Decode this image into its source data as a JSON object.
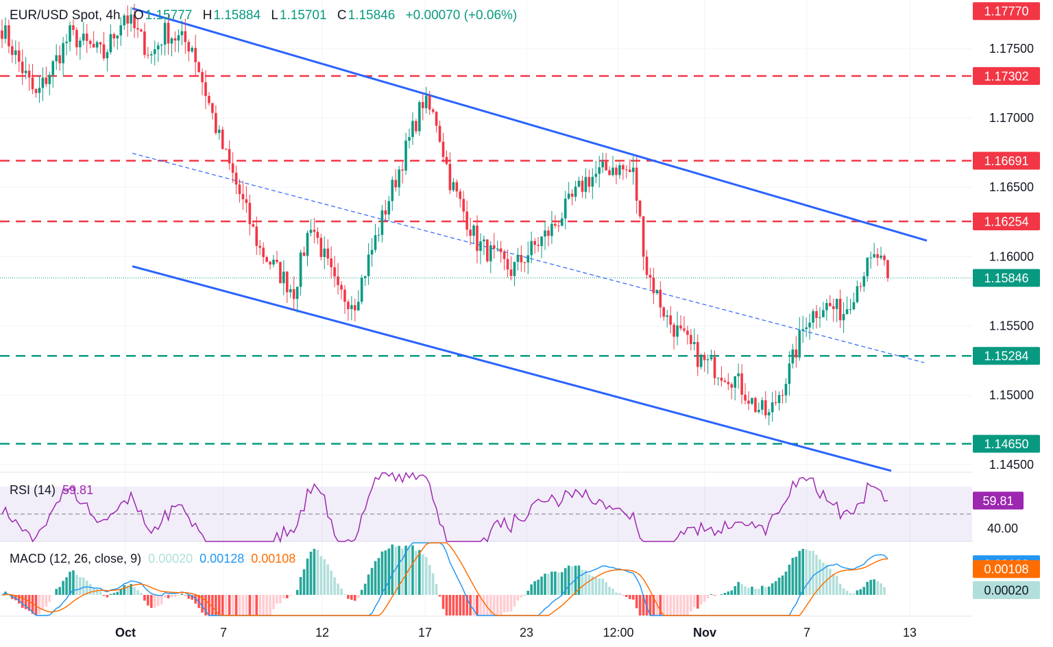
{
  "header": {
    "symbol": "EUR/USD Spot, 4h",
    "open_label": "O",
    "open": "1.15777",
    "high_label": "H",
    "high": "1.15884",
    "low_label": "L",
    "low": "1.15701",
    "close_label": "C",
    "close": "1.15846",
    "change": "+0.00070 (+0.06%)"
  },
  "rsi_legend": {
    "name": "RSI (14)",
    "value": "59.81"
  },
  "macd_legend": {
    "name": "MACD (12, 26, close, 9)",
    "hist": "0.00020",
    "macd": "0.00128",
    "signal": "0.00108"
  },
  "colors": {
    "up": "#089981",
    "down": "#f23645",
    "channel": "#2962ff",
    "rsi": "#9c27b0",
    "macd": "#2196f3",
    "signal": "#ff6d00",
    "hist_up_strong": "#26a69a",
    "hist_up_weak": "#b2dfdb",
    "hist_down_strong": "#ff5252",
    "hist_down_weak": "#ffcdd2"
  },
  "chart_data": {
    "type": "candlestick",
    "timeframe": "4h",
    "x_tick_labels": [
      "Oct",
      "7",
      "12",
      "17",
      "23",
      "12:00",
      "Nov",
      "7",
      "13"
    ],
    "y_ticks": [
      "1.17500",
      "1.17000",
      "1.16500",
      "1.16000",
      "1.15500",
      "1.15000",
      "1.14500"
    ],
    "ylim": [
      1.1445,
      1.1785
    ],
    "price_labels": [
      {
        "value": "1.17770",
        "kind": "resistance"
      },
      {
        "value": "1.17302",
        "kind": "resistance"
      },
      {
        "value": "1.16691",
        "kind": "resistance"
      },
      {
        "value": "1.16254",
        "kind": "resistance"
      },
      {
        "value": "1.15846",
        "kind": "last"
      },
      {
        "value": "1.15284",
        "kind": "support"
      },
      {
        "value": "1.14650",
        "kind": "support"
      }
    ],
    "channel": {
      "upper": [
        [
          "Oct 1",
          1.1785
        ],
        [
          "Nov 12",
          1.1613
        ]
      ],
      "lower": [
        [
          "Oct 1",
          1.159
        ],
        [
          "Nov 12",
          1.1446
        ]
      ],
      "mid_dashed": [
        [
          "Oct 1",
          1.1675
        ],
        [
          "Nov 13",
          1.1524
        ]
      ]
    },
    "waypoints": [
      [
        0,
        1.1765
      ],
      [
        10,
        1.1715
      ],
      [
        20,
        1.176
      ],
      [
        30,
        1.1745
      ],
      [
        36,
        1.1775
      ],
      [
        44,
        1.1745
      ],
      [
        48,
        1.1762
      ],
      [
        56,
        1.1752
      ],
      [
        64,
        1.1685
      ],
      [
        76,
        1.1605
      ],
      [
        86,
        1.1575
      ],
      [
        91,
        1.1625
      ],
      [
        99,
        1.1573
      ],
      [
        104,
        1.1568
      ],
      [
        114,
        1.1642
      ],
      [
        124,
        1.1712
      ],
      [
        128,
        1.1698
      ],
      [
        132,
        1.1655
      ],
      [
        140,
        1.161
      ],
      [
        150,
        1.159
      ],
      [
        162,
        1.162
      ],
      [
        172,
        1.1655
      ],
      [
        180,
        1.1665
      ],
      [
        186,
        1.166
      ],
      [
        190,
        1.159
      ],
      [
        196,
        1.1555
      ],
      [
        206,
        1.1525
      ],
      [
        216,
        1.1512
      ],
      [
        222,
        1.1492
      ],
      [
        226,
        1.1485
      ],
      [
        232,
        1.1518
      ],
      [
        237,
        1.1555
      ],
      [
        242,
        1.1565
      ],
      [
        248,
        1.156
      ],
      [
        254,
        1.159
      ],
      [
        258,
        1.16
      ],
      [
        261,
        1.1585
      ]
    ],
    "last_price": 1.15846,
    "rsi": {
      "value": 59.81,
      "levels": [
        70,
        50,
        30
      ],
      "tick_label": "40.00"
    },
    "macd": {
      "hist": 0.0002,
      "macd": 0.00128,
      "signal": 0.00108
    }
  }
}
